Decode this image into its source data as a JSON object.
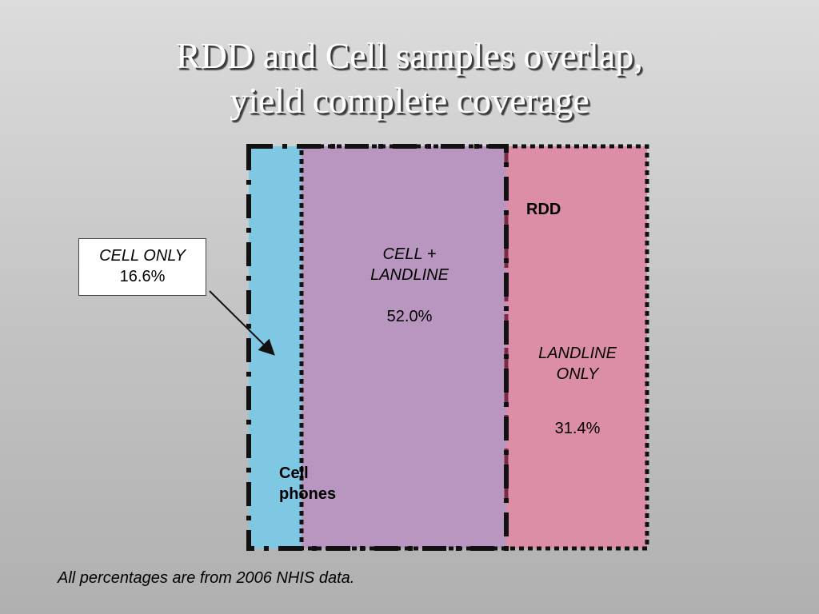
{
  "title": {
    "line1": "RDD and Cell samples overlap,",
    "line2": "yield complete coverage"
  },
  "regions": {
    "cell_only": {
      "label": "CELL ONLY",
      "value": "16.6%",
      "color": "#7ec8e3"
    },
    "cell_landline": {
      "label_line1": "CELL +",
      "label_line2": "LANDLINE",
      "value": "52.0%",
      "color": "#b896bf"
    },
    "landline_only": {
      "label_line1": "LANDLINE",
      "label_line2": "ONLY",
      "value": "31.4%",
      "color": "#dc8ea6"
    }
  },
  "frames": {
    "rdd_label": "RDD",
    "cell_label_line1": "Cell",
    "cell_label_line2": "phones"
  },
  "footnote": "All percentages are from 2006 NHIS data."
}
